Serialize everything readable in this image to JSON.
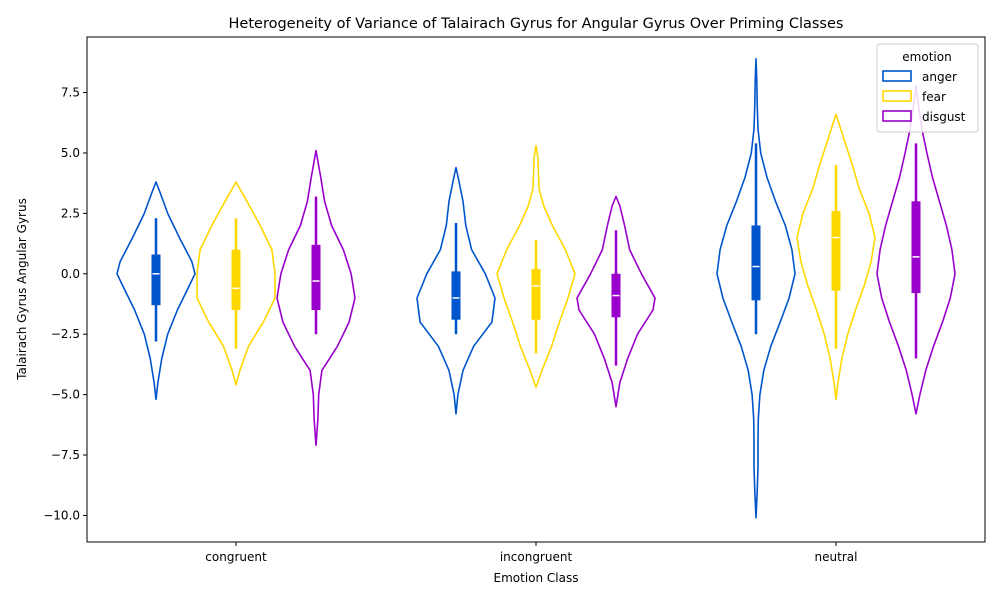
{
  "chart_data": {
    "type": "violin",
    "title": "Heterogeneity of Variance of Talairach Gyrus for Angular Gyrus Over Priming Classes",
    "xlabel": "Emotion Class",
    "ylabel": "Talairach Gyrus Angular Gyrus",
    "categories": [
      "congruent",
      "incongruent",
      "neutral"
    ],
    "ylim": [
      -11.1,
      9.8
    ],
    "yticks": [
      -10.0,
      -7.5,
      -5.0,
      -2.5,
      0.0,
      2.5,
      5.0,
      7.5
    ],
    "ytick_labels": [
      "−10.0",
      "−7.5",
      "−5.0",
      "−2.5",
      "0.0",
      "2.5",
      "5.0",
      "7.5"
    ],
    "legend": {
      "title": "emotion",
      "placement": "upper right"
    },
    "series": [
      {
        "name": "anger",
        "color": "#0055cc",
        "groups": [
          {
            "category": "congruent",
            "min": -5.2,
            "max": 3.8,
            "q1": -1.3,
            "median": 0.0,
            "q3": 0.8,
            "whisker_low": -2.8,
            "whisker_high": 2.3,
            "density": [
              [
                -5.2,
                0.0
              ],
              [
                -4.5,
                0.05
              ],
              [
                -3.5,
                0.15
              ],
              [
                -2.5,
                0.3
              ],
              [
                -1.5,
                0.55
              ],
              [
                -0.5,
                0.85
              ],
              [
                0.0,
                1.0
              ],
              [
                0.5,
                0.92
              ],
              [
                1.5,
                0.6
              ],
              [
                2.5,
                0.3
              ],
              [
                3.3,
                0.12
              ],
              [
                3.8,
                0.0
              ]
            ]
          },
          {
            "category": "incongruent",
            "min": -5.8,
            "max": 4.4,
            "q1": -1.9,
            "median": -1.0,
            "q3": 0.1,
            "whisker_low": -2.5,
            "whisker_high": 2.1,
            "density": [
              [
                -5.8,
                0.0
              ],
              [
                -5.0,
                0.05
              ],
              [
                -4.0,
                0.18
              ],
              [
                -3.0,
                0.45
              ],
              [
                -2.0,
                0.92
              ],
              [
                -1.0,
                1.0
              ],
              [
                0.0,
                0.75
              ],
              [
                1.0,
                0.4
              ],
              [
                2.0,
                0.25
              ],
              [
                3.0,
                0.18
              ],
              [
                3.8,
                0.08
              ],
              [
                4.4,
                0.0
              ]
            ]
          },
          {
            "category": "neutral",
            "min": -10.1,
            "max": 8.9,
            "q1": -1.1,
            "median": 0.3,
            "q3": 2.0,
            "whisker_low": -2.5,
            "whisker_high": 5.4,
            "density": [
              [
                -10.1,
                0.0
              ],
              [
                -9.0,
                0.03
              ],
              [
                -8.0,
                0.05
              ],
              [
                -7.0,
                0.05
              ],
              [
                -6.0,
                0.06
              ],
              [
                -5.0,
                0.1
              ],
              [
                -4.0,
                0.2
              ],
              [
                -3.0,
                0.38
              ],
              [
                -2.0,
                0.62
              ],
              [
                -1.0,
                0.85
              ],
              [
                0.0,
                1.0
              ],
              [
                1.0,
                0.92
              ],
              [
                2.0,
                0.75
              ],
              [
                3.0,
                0.5
              ],
              [
                4.0,
                0.28
              ],
              [
                5.0,
                0.12
              ],
              [
                6.0,
                0.05
              ],
              [
                7.0,
                0.03
              ],
              [
                8.0,
                0.02
              ],
              [
                8.9,
                0.0
              ]
            ]
          }
        ]
      },
      {
        "name": "fear",
        "color": "#ffd700",
        "groups": [
          {
            "category": "congruent",
            "min": -4.6,
            "max": 3.8,
            "q1": -1.5,
            "median": -0.6,
            "q3": 1.0,
            "whisker_low": -3.1,
            "whisker_high": 2.3,
            "density": [
              [
                -4.6,
                0.0
              ],
              [
                -4.0,
                0.1
              ],
              [
                -3.0,
                0.32
              ],
              [
                -2.0,
                0.7
              ],
              [
                -1.0,
                1.0
              ],
              [
                0.0,
                1.0
              ],
              [
                1.0,
                0.92
              ],
              [
                2.0,
                0.62
              ],
              [
                3.0,
                0.28
              ],
              [
                3.8,
                0.0
              ]
            ]
          },
          {
            "category": "incongruent",
            "min": -4.7,
            "max": 5.3,
            "q1": -1.9,
            "median": -0.5,
            "q3": 0.2,
            "whisker_low": -3.3,
            "whisker_high": 1.4,
            "density": [
              [
                -4.7,
                0.0
              ],
              [
                -4.0,
                0.15
              ],
              [
                -3.0,
                0.4
              ],
              [
                -2.0,
                0.6
              ],
              [
                -1.0,
                0.82
              ],
              [
                0.0,
                1.0
              ],
              [
                1.0,
                0.75
              ],
              [
                2.0,
                0.42
              ],
              [
                2.8,
                0.2
              ],
              [
                3.5,
                0.08
              ],
              [
                4.2,
                0.06
              ],
              [
                4.8,
                0.05
              ],
              [
                5.3,
                0.0
              ]
            ]
          },
          {
            "category": "neutral",
            "min": -5.2,
            "max": 6.6,
            "q1": -0.7,
            "median": 1.5,
            "q3": 2.6,
            "whisker_low": -3.1,
            "whisker_high": 4.5,
            "density": [
              [
                -5.2,
                0.0
              ],
              [
                -4.5,
                0.05
              ],
              [
                -3.5,
                0.15
              ],
              [
                -2.5,
                0.3
              ],
              [
                -1.5,
                0.5
              ],
              [
                -0.5,
                0.72
              ],
              [
                0.5,
                0.9
              ],
              [
                1.5,
                1.0
              ],
              [
                2.5,
                0.85
              ],
              [
                3.5,
                0.6
              ],
              [
                4.5,
                0.42
              ],
              [
                5.5,
                0.22
              ],
              [
                6.2,
                0.08
              ],
              [
                6.6,
                0.0
              ]
            ]
          }
        ]
      },
      {
        "name": "disgust",
        "color": "#9900cc",
        "groups": [
          {
            "category": "congruent",
            "min": -7.1,
            "max": 5.1,
            "q1": -1.5,
            "median": -0.3,
            "q3": 1.2,
            "whisker_low": -2.5,
            "whisker_high": 3.2,
            "density": [
              [
                -7.1,
                0.0
              ],
              [
                -6.0,
                0.05
              ],
              [
                -5.0,
                0.07
              ],
              [
                -4.0,
                0.15
              ],
              [
                -3.0,
                0.55
              ],
              [
                -2.0,
                0.85
              ],
              [
                -1.0,
                1.0
              ],
              [
                0.0,
                0.9
              ],
              [
                1.0,
                0.7
              ],
              [
                2.0,
                0.4
              ],
              [
                3.0,
                0.22
              ],
              [
                4.0,
                0.12
              ],
              [
                5.1,
                0.0
              ]
            ]
          },
          {
            "category": "incongruent",
            "min": -5.5,
            "max": 3.2,
            "q1": -1.8,
            "median": -0.9,
            "q3": 0.0,
            "whisker_low": -3.8,
            "whisker_high": 1.8,
            "density": [
              [
                -5.5,
                0.0
              ],
              [
                -4.5,
                0.1
              ],
              [
                -3.5,
                0.3
              ],
              [
                -2.5,
                0.55
              ],
              [
                -1.5,
                0.95
              ],
              [
                -1.0,
                1.0
              ],
              [
                0.0,
                0.65
              ],
              [
                1.0,
                0.35
              ],
              [
                2.0,
                0.22
              ],
              [
                2.8,
                0.1
              ],
              [
                3.2,
                0.0
              ]
            ]
          },
          {
            "category": "neutral",
            "min": -5.8,
            "max": 7.8,
            "q1": -0.8,
            "median": 0.7,
            "q3": 3.0,
            "whisker_low": -3.5,
            "whisker_high": 5.4,
            "density": [
              [
                -5.8,
                0.0
              ],
              [
                -5.0,
                0.1
              ],
              [
                -4.0,
                0.25
              ],
              [
                -3.0,
                0.45
              ],
              [
                -2.0,
                0.68
              ],
              [
                -1.0,
                0.88
              ],
              [
                0.0,
                1.0
              ],
              [
                1.0,
                0.92
              ],
              [
                2.0,
                0.78
              ],
              [
                3.0,
                0.6
              ],
              [
                4.0,
                0.42
              ],
              [
                5.0,
                0.28
              ],
              [
                6.0,
                0.15
              ],
              [
                7.0,
                0.06
              ],
              [
                7.8,
                0.0
              ]
            ]
          }
        ]
      }
    ]
  }
}
